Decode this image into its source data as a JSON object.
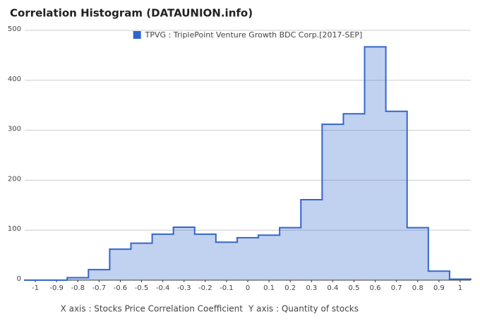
{
  "chart_data": {
    "type": "step",
    "title": "Correlation Histogram (DATAUNION.info)",
    "x_label": "X axis : Stocks Price Correlation Coefficient",
    "y_label": "Y axis : Quantity of stocks",
    "x": [
      -1,
      -0.9,
      -0.8,
      -0.7,
      -0.6,
      -0.5,
      -0.4,
      -0.3,
      -0.2,
      -0.1,
      0,
      0.1,
      0.2,
      0.3,
      0.4,
      0.5,
      0.6,
      0.7,
      0.8,
      0.9,
      1
    ],
    "series": [
      {
        "name": "TPVG : TriplePoint Venture Growth BDC Corp.[2017-SEP]",
        "color": "#3366cc",
        "values": [
          0,
          0,
          5,
          21,
          62,
          74,
          92,
          106,
          92,
          76,
          85,
          90,
          105,
          161,
          312,
          333,
          467,
          338,
          105,
          18,
          2
        ]
      }
    ],
    "xlim": [
      -1.05,
      1.05
    ],
    "xticks": [
      -1,
      -0.9,
      -0.8,
      -0.7,
      -0.6,
      -0.5,
      -0.4,
      -0.3,
      -0.2,
      -0.1,
      0,
      0.1,
      0.2,
      0.3,
      0.4,
      0.5,
      0.6,
      0.7,
      0.8,
      0.9,
      1
    ],
    "ylim": [
      0,
      500
    ],
    "yticks": [
      0,
      100,
      200,
      300,
      400,
      500
    ],
    "grid": true,
    "legend": "top"
  }
}
